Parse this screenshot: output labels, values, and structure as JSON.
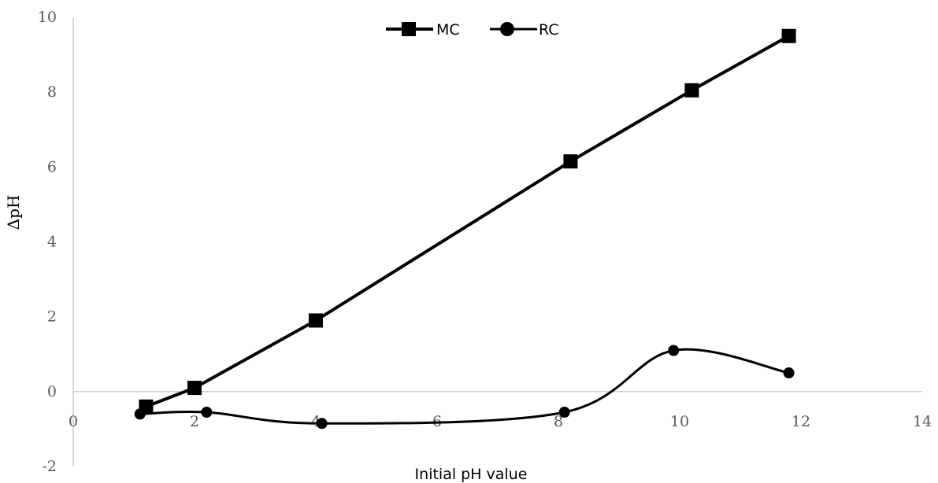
{
  "chart_data": {
    "type": "line",
    "title": "",
    "xlabel": "Initial pH value",
    "ylabel": "ΔpH",
    "xlim": [
      0,
      14
    ],
    "ylim": [
      -2,
      10
    ],
    "x_ticks": [
      "0",
      "2",
      "4",
      "6",
      "8",
      "10",
      "12",
      "14"
    ],
    "y_ticks": [
      "-2",
      "0",
      "2",
      "4",
      "6",
      "8",
      "10"
    ],
    "grid": false,
    "legend_position": "top-center",
    "series": [
      {
        "name": "MC",
        "marker": "square",
        "smooth": false,
        "color": "#000000",
        "x": [
          1.2,
          2.0,
          4.0,
          8.2,
          10.2,
          11.8
        ],
        "y": [
          -0.4,
          0.1,
          1.9,
          6.15,
          8.05,
          9.5
        ]
      },
      {
        "name": "RC",
        "marker": "circle",
        "smooth": true,
        "color": "#000000",
        "x": [
          1.1,
          2.2,
          4.1,
          8.1,
          9.9,
          11.8
        ],
        "y": [
          -0.6,
          -0.55,
          -0.85,
          -0.55,
          1.1,
          0.5
        ]
      }
    ]
  }
}
